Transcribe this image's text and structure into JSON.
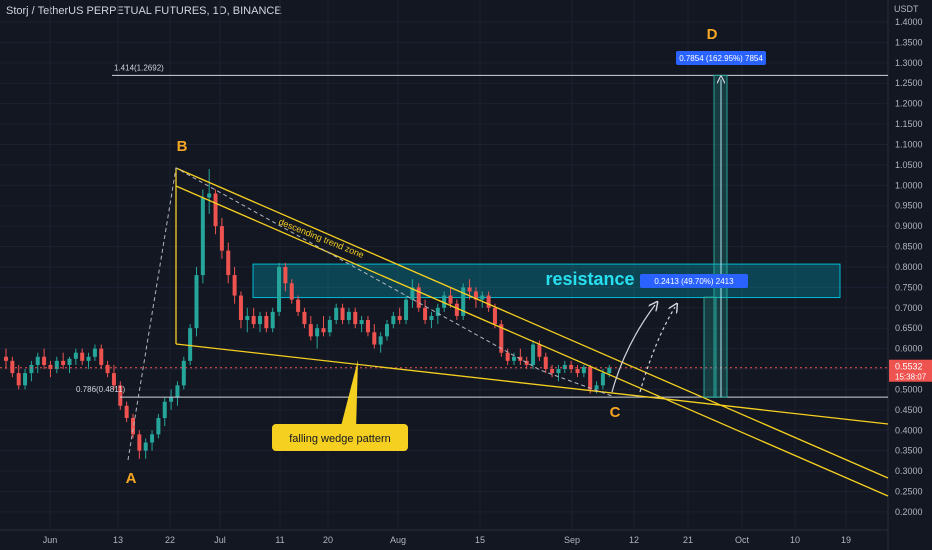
{
  "header": {
    "title": "Storj / TetherUS PERPETUAL FUTURES, 1D, BINANCE"
  },
  "axis": {
    "currency": "USDT"
  },
  "price_tag": {
    "value": "0.5532",
    "countdown": "15:38:07"
  },
  "chart_data": {
    "type": "candlestick",
    "title": "Storj / TetherUS PERPETUAL FUTURES, 1D, BINANCE",
    "ylabel": "USDT",
    "ylim": [
      0.19,
      1.4
    ],
    "y_ticks": [
      0.2,
      0.25,
      0.3,
      0.35,
      0.4,
      0.45,
      0.5,
      0.55,
      0.6,
      0.65,
      0.7,
      0.75,
      0.8,
      0.85,
      0.9,
      0.95,
      1.0,
      1.05,
      1.1,
      1.15,
      1.2,
      1.25,
      1.3,
      1.35,
      1.4
    ],
    "x_ticks": [
      "Jun",
      "13",
      "22",
      "Jul",
      "11",
      "20",
      "Aug",
      "15",
      "Sep",
      "12",
      "21",
      "Oct",
      "10",
      "19"
    ],
    "candles_ohlc": [
      [
        0.58,
        0.6,
        0.55,
        0.57
      ],
      [
        0.57,
        0.58,
        0.53,
        0.54
      ],
      [
        0.54,
        0.56,
        0.5,
        0.51
      ],
      [
        0.51,
        0.55,
        0.5,
        0.54
      ],
      [
        0.54,
        0.57,
        0.52,
        0.56
      ],
      [
        0.56,
        0.59,
        0.54,
        0.58
      ],
      [
        0.58,
        0.6,
        0.55,
        0.56
      ],
      [
        0.56,
        0.57,
        0.53,
        0.55
      ],
      [
        0.55,
        0.58,
        0.54,
        0.57
      ],
      [
        0.57,
        0.59,
        0.55,
        0.56
      ],
      [
        0.56,
        0.58,
        0.54,
        0.575
      ],
      [
        0.575,
        0.6,
        0.56,
        0.59
      ],
      [
        0.59,
        0.6,
        0.56,
        0.57
      ],
      [
        0.57,
        0.59,
        0.55,
        0.58
      ],
      [
        0.58,
        0.61,
        0.57,
        0.6
      ],
      [
        0.6,
        0.61,
        0.55,
        0.56
      ],
      [
        0.56,
        0.57,
        0.53,
        0.54
      ],
      [
        0.54,
        0.56,
        0.5,
        0.51
      ],
      [
        0.51,
        0.52,
        0.45,
        0.46
      ],
      [
        0.46,
        0.47,
        0.42,
        0.43
      ],
      [
        0.43,
        0.44,
        0.38,
        0.39
      ],
      [
        0.39,
        0.4,
        0.33,
        0.35
      ],
      [
        0.35,
        0.38,
        0.33,
        0.37
      ],
      [
        0.37,
        0.4,
        0.35,
        0.39
      ],
      [
        0.39,
        0.44,
        0.38,
        0.43
      ],
      [
        0.43,
        0.48,
        0.41,
        0.47
      ],
      [
        0.47,
        0.5,
        0.45,
        0.48
      ],
      [
        0.48,
        0.52,
        0.46,
        0.51
      ],
      [
        0.51,
        0.58,
        0.5,
        0.57
      ],
      [
        0.57,
        0.66,
        0.56,
        0.65
      ],
      [
        0.65,
        0.8,
        0.63,
        0.78
      ],
      [
        0.78,
        0.99,
        0.76,
        0.97
      ],
      [
        0.97,
        1.04,
        0.93,
        0.98
      ],
      [
        0.98,
        0.99,
        0.88,
        0.9
      ],
      [
        0.9,
        0.92,
        0.82,
        0.84
      ],
      [
        0.84,
        0.86,
        0.76,
        0.78
      ],
      [
        0.78,
        0.8,
        0.71,
        0.73
      ],
      [
        0.73,
        0.74,
        0.65,
        0.67
      ],
      [
        0.67,
        0.7,
        0.64,
        0.68
      ],
      [
        0.68,
        0.7,
        0.65,
        0.66
      ],
      [
        0.66,
        0.69,
        0.64,
        0.68
      ],
      [
        0.68,
        0.69,
        0.64,
        0.65
      ],
      [
        0.65,
        0.7,
        0.64,
        0.69
      ],
      [
        0.69,
        0.81,
        0.68,
        0.8
      ],
      [
        0.8,
        0.81,
        0.74,
        0.76
      ],
      [
        0.76,
        0.77,
        0.71,
        0.72
      ],
      [
        0.72,
        0.73,
        0.68,
        0.69
      ],
      [
        0.69,
        0.7,
        0.65,
        0.66
      ],
      [
        0.66,
        0.68,
        0.62,
        0.63
      ],
      [
        0.63,
        0.66,
        0.6,
        0.65
      ],
      [
        0.65,
        0.68,
        0.63,
        0.64
      ],
      [
        0.64,
        0.68,
        0.63,
        0.67
      ],
      [
        0.67,
        0.71,
        0.66,
        0.7
      ],
      [
        0.7,
        0.71,
        0.66,
        0.67
      ],
      [
        0.67,
        0.7,
        0.66,
        0.69
      ],
      [
        0.69,
        0.7,
        0.65,
        0.66
      ],
      [
        0.66,
        0.68,
        0.64,
        0.67
      ],
      [
        0.67,
        0.68,
        0.63,
        0.64
      ],
      [
        0.64,
        0.66,
        0.6,
        0.61
      ],
      [
        0.61,
        0.64,
        0.59,
        0.63
      ],
      [
        0.63,
        0.67,
        0.62,
        0.66
      ],
      [
        0.66,
        0.69,
        0.65,
        0.68
      ],
      [
        0.68,
        0.7,
        0.66,
        0.67
      ],
      [
        0.67,
        0.73,
        0.66,
        0.72
      ],
      [
        0.72,
        0.77,
        0.7,
        0.75
      ],
      [
        0.75,
        0.76,
        0.69,
        0.7
      ],
      [
        0.7,
        0.72,
        0.66,
        0.67
      ],
      [
        0.67,
        0.69,
        0.65,
        0.68
      ],
      [
        0.68,
        0.71,
        0.66,
        0.7
      ],
      [
        0.7,
        0.74,
        0.69,
        0.73
      ],
      [
        0.73,
        0.75,
        0.7,
        0.71
      ],
      [
        0.71,
        0.72,
        0.67,
        0.68
      ],
      [
        0.68,
        0.76,
        0.67,
        0.75
      ],
      [
        0.75,
        0.77,
        0.72,
        0.74
      ],
      [
        0.74,
        0.75,
        0.7,
        0.72
      ],
      [
        0.72,
        0.74,
        0.7,
        0.73
      ],
      [
        0.73,
        0.74,
        0.69,
        0.7
      ],
      [
        0.7,
        0.71,
        0.65,
        0.66
      ],
      [
        0.66,
        0.67,
        0.58,
        0.59
      ],
      [
        0.59,
        0.6,
        0.56,
        0.57
      ],
      [
        0.57,
        0.59,
        0.56,
        0.58
      ],
      [
        0.58,
        0.6,
        0.56,
        0.57
      ],
      [
        0.57,
        0.58,
        0.55,
        0.56
      ],
      [
        0.56,
        0.62,
        0.55,
        0.61
      ],
      [
        0.61,
        0.62,
        0.57,
        0.58
      ],
      [
        0.58,
        0.59,
        0.54,
        0.55
      ],
      [
        0.55,
        0.56,
        0.53,
        0.54
      ],
      [
        0.54,
        0.56,
        0.52,
        0.55
      ],
      [
        0.55,
        0.57,
        0.54,
        0.56
      ],
      [
        0.56,
        0.57,
        0.54,
        0.55
      ],
      [
        0.55,
        0.56,
        0.53,
        0.54
      ],
      [
        0.54,
        0.56,
        0.53,
        0.555
      ],
      [
        0.555,
        0.56,
        0.49,
        0.5
      ],
      [
        0.5,
        0.52,
        0.49,
        0.51
      ],
      [
        0.51,
        0.55,
        0.5,
        0.54
      ],
      [
        0.54,
        0.56,
        0.53,
        0.5532
      ]
    ],
    "levels": [
      {
        "label": "1.414(1.2692)",
        "price": 1.2692
      },
      {
        "label": "0.786(0.4811)",
        "price": 0.4811
      }
    ],
    "resistance_zone": {
      "label": "resistance",
      "top": 0.807,
      "bottom": 0.725
    },
    "measure_labels": [
      "0.2413 (49.70%) 2413",
      "0.7854 (162.95%) 7854"
    ],
    "wave_labels": [
      "A",
      "B",
      "C",
      "D"
    ],
    "annotations": [
      "descending trend zone",
      "falling wedge pattern"
    ]
  }
}
